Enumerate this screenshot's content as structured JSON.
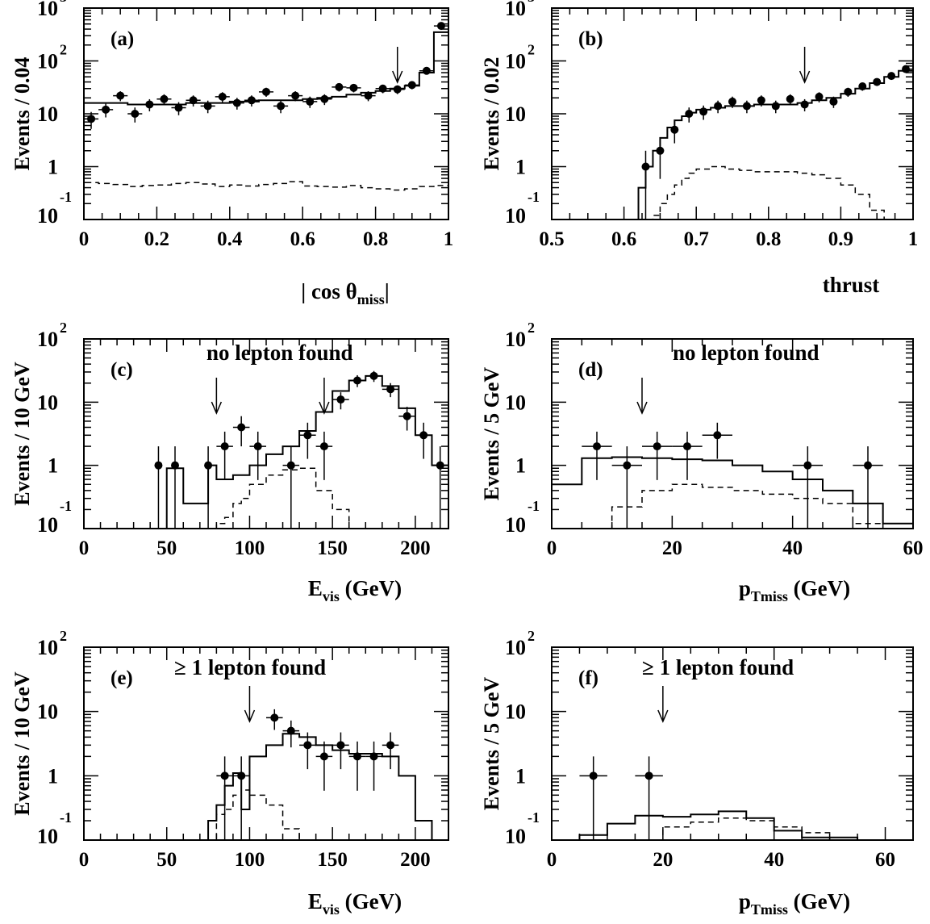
{
  "chart_data": [
    {
      "id": "a",
      "type": "histogram",
      "panel_label": "(a)",
      "annotation": "",
      "ylabel": "Events / 0.04",
      "xlabel": "| cos θ",
      "xlabel_sub": "miss",
      "xlabel_suffix": "|",
      "xlim": [
        0,
        1
      ],
      "ylim_log": [
        0.1,
        1000
      ],
      "xticks": [
        0,
        0.2,
        0.4,
        0.6,
        0.8,
        1
      ],
      "xtick_labels": [
        "0",
        "0.2",
        "0.4",
        "0.6",
        "0.8",
        "1"
      ],
      "minor_xticks": [
        0.05,
        0.1,
        0.15,
        0.25,
        0.3,
        0.35,
        0.45,
        0.5,
        0.55,
        0.65,
        0.7,
        0.75,
        0.85,
        0.9,
        0.95
      ],
      "ytick_labels": [
        {
          "value": 1000,
          "base": "10",
          "exp": "3"
        },
        {
          "value": 100,
          "base": "10",
          "exp": "2"
        },
        {
          "value": 10,
          "base": "10",
          "exp": ""
        },
        {
          "value": 1,
          "base": "1",
          "exp": ""
        },
        {
          "value": 0.1,
          "base": "10",
          "exp": "-1"
        }
      ],
      "cut_arrow": 0.86,
      "mc_bins": [
        0,
        0.04,
        0.08,
        0.12,
        0.16,
        0.2,
        0.24,
        0.28,
        0.32,
        0.36,
        0.4,
        0.44,
        0.48,
        0.52,
        0.56,
        0.6,
        0.64,
        0.68,
        0.72,
        0.76,
        0.8,
        0.84,
        0.88,
        0.92,
        0.96,
        1.0
      ],
      "mc_values": [
        16,
        16,
        16,
        15,
        15,
        15,
        15,
        16,
        16,
        16,
        17,
        17,
        18,
        18,
        18,
        19,
        20,
        21,
        23,
        25,
        27,
        30,
        34,
        60,
        350
      ],
      "bg_values": [
        0.5,
        0.48,
        0.46,
        0.42,
        0.44,
        0.45,
        0.48,
        0.5,
        0.47,
        0.42,
        0.45,
        0.43,
        0.46,
        0.48,
        0.52,
        0.43,
        0.42,
        0.41,
        0.44,
        0.4,
        0.38,
        0.36,
        0.38,
        0.42,
        0.44
      ],
      "data_points": [
        {
          "x": 0.02,
          "y": 8,
          "xerr": 0.02
        },
        {
          "x": 0.06,
          "y": 12,
          "xerr": 0.02
        },
        {
          "x": 0.1,
          "y": 22,
          "xerr": 0.02
        },
        {
          "x": 0.14,
          "y": 10,
          "xerr": 0.02
        },
        {
          "x": 0.18,
          "y": 15,
          "xerr": 0.02
        },
        {
          "x": 0.22,
          "y": 19,
          "xerr": 0.02
        },
        {
          "x": 0.26,
          "y": 13,
          "xerr": 0.02
        },
        {
          "x": 0.3,
          "y": 18,
          "xerr": 0.02
        },
        {
          "x": 0.34,
          "y": 14,
          "xerr": 0.02
        },
        {
          "x": 0.38,
          "y": 21,
          "xerr": 0.02
        },
        {
          "x": 0.42,
          "y": 16,
          "xerr": 0.02
        },
        {
          "x": 0.46,
          "y": 18,
          "xerr": 0.02
        },
        {
          "x": 0.5,
          "y": 26,
          "xerr": 0.02
        },
        {
          "x": 0.54,
          "y": 14,
          "xerr": 0.02
        },
        {
          "x": 0.58,
          "y": 22,
          "xerr": 0.02
        },
        {
          "x": 0.62,
          "y": 17,
          "xerr": 0.02
        },
        {
          "x": 0.66,
          "y": 19,
          "xerr": 0.02
        },
        {
          "x": 0.7,
          "y": 32,
          "xerr": 0.02
        },
        {
          "x": 0.74,
          "y": 31,
          "xerr": 0.02
        },
        {
          "x": 0.78,
          "y": 22,
          "xerr": 0.02
        },
        {
          "x": 0.82,
          "y": 30,
          "xerr": 0.02
        },
        {
          "x": 0.86,
          "y": 29,
          "xerr": 0.02
        },
        {
          "x": 0.9,
          "y": 35,
          "xerr": 0.02
        },
        {
          "x": 0.94,
          "y": 65,
          "xerr": 0.02
        },
        {
          "x": 0.98,
          "y": 460,
          "xerr": 0.02
        }
      ]
    },
    {
      "id": "b",
      "type": "histogram",
      "panel_label": "(b)",
      "annotation": "",
      "ylabel": "Events / 0.02",
      "xlabel": "thrust",
      "xlabel_sub": "",
      "xlabel_suffix": "",
      "xlim": [
        0.5,
        1
      ],
      "ylim_log": [
        0.1,
        1000
      ],
      "xticks": [
        0.5,
        0.6,
        0.7,
        0.8,
        0.9,
        1
      ],
      "xtick_labels": [
        "0.5",
        "0.6",
        "0.7",
        "0.8",
        "0.9",
        "1"
      ],
      "minor_xticks": [
        0.525,
        0.55,
        0.575,
        0.625,
        0.65,
        0.675,
        0.725,
        0.75,
        0.775,
        0.825,
        0.85,
        0.875,
        0.925,
        0.95,
        0.975
      ],
      "ytick_labels": [
        {
          "value": 1000,
          "base": "10",
          "exp": "3"
        },
        {
          "value": 100,
          "base": "10",
          "exp": "2"
        },
        {
          "value": 10,
          "base": "10",
          "exp": ""
        },
        {
          "value": 1,
          "base": "1",
          "exp": ""
        },
        {
          "value": 0.1,
          "base": "10",
          "exp": "-1"
        }
      ],
      "cut_arrow": 0.85,
      "mc_bins": [
        0.62,
        0.63,
        0.64,
        0.65,
        0.66,
        0.67,
        0.68,
        0.69,
        0.7,
        0.72,
        0.74,
        0.76,
        0.78,
        0.8,
        0.82,
        0.84,
        0.86,
        0.88,
        0.9,
        0.92,
        0.94,
        0.96,
        0.98,
        1.0
      ],
      "mc_values": [
        0.4,
        1.0,
        2.0,
        3.5,
        5.5,
        7.5,
        9.0,
        10.5,
        12,
        13,
        14,
        14,
        15,
        15,
        15,
        16,
        18,
        20,
        24,
        30,
        38,
        50,
        65
      ],
      "bg_values": [
        0.06,
        0.08,
        0.12,
        0.2,
        0.3,
        0.45,
        0.6,
        0.75,
        0.9,
        1.0,
        0.9,
        0.85,
        0.8,
        0.8,
        0.8,
        0.75,
        0.7,
        0.6,
        0.45,
        0.3,
        0.15,
        0.08,
        0.06
      ],
      "data_points": [
        {
          "x": 0.63,
          "y": 1,
          "xerr": 0.005
        },
        {
          "x": 0.65,
          "y": 2,
          "xerr": 0.005
        },
        {
          "x": 0.67,
          "y": 5,
          "xerr": 0.005
        },
        {
          "x": 0.69,
          "y": 10,
          "xerr": 0.005
        },
        {
          "x": 0.71,
          "y": 11,
          "xerr": 0.005
        },
        {
          "x": 0.73,
          "y": 14,
          "xerr": 0.005
        },
        {
          "x": 0.75,
          "y": 17,
          "xerr": 0.005
        },
        {
          "x": 0.77,
          "y": 14,
          "xerr": 0.005
        },
        {
          "x": 0.79,
          "y": 18,
          "xerr": 0.005
        },
        {
          "x": 0.81,
          "y": 14,
          "xerr": 0.005
        },
        {
          "x": 0.83,
          "y": 19,
          "xerr": 0.005
        },
        {
          "x": 0.85,
          "y": 15,
          "xerr": 0.005
        },
        {
          "x": 0.87,
          "y": 21,
          "xerr": 0.005
        },
        {
          "x": 0.89,
          "y": 17,
          "xerr": 0.005
        },
        {
          "x": 0.91,
          "y": 26,
          "xerr": 0.005
        },
        {
          "x": 0.93,
          "y": 33,
          "xerr": 0.005
        },
        {
          "x": 0.95,
          "y": 40,
          "xerr": 0.005
        },
        {
          "x": 0.97,
          "y": 52,
          "xerr": 0.005
        },
        {
          "x": 0.99,
          "y": 70,
          "xerr": 0.005
        }
      ]
    },
    {
      "id": "c",
      "type": "histogram",
      "panel_label": "(c)",
      "annotation": "no lepton found",
      "ylabel": "Events / 10 GeV",
      "xlabel": "E",
      "xlabel_sub": "vis",
      "xlabel_suffix": " (GeV)",
      "xlim": [
        0,
        220
      ],
      "ylim_log": [
        0.1,
        100
      ],
      "xticks": [
        0,
        50,
        100,
        150,
        200
      ],
      "xtick_labels": [
        "0",
        "50",
        "100",
        "150",
        "200"
      ],
      "minor_xticks": [
        10,
        20,
        30,
        40,
        60,
        70,
        80,
        90,
        110,
        120,
        130,
        140,
        160,
        170,
        180,
        190,
        210
      ],
      "ytick_labels": [
        {
          "value": 100,
          "base": "10",
          "exp": "2"
        },
        {
          "value": 10,
          "base": "10",
          "exp": ""
        },
        {
          "value": 1,
          "base": "1",
          "exp": ""
        },
        {
          "value": 0.1,
          "base": "10",
          "exp": "-1"
        }
      ],
      "cut_arrow": [
        80,
        145
      ],
      "mc_bins": [
        50,
        55,
        60,
        65,
        70,
        75,
        80,
        85,
        90,
        95,
        100,
        110,
        120,
        130,
        140,
        150,
        160,
        170,
        180,
        190,
        200,
        210,
        220
      ],
      "mc_values": [
        0.9,
        0.9,
        0.25,
        0.25,
        0.25,
        1.0,
        0.6,
        0.6,
        0.7,
        0.7,
        1.0,
        1.5,
        2.0,
        3.5,
        7.0,
        15,
        22,
        26,
        18,
        8,
        3,
        1
      ],
      "bg_values": [
        0.01,
        0.01,
        0.01,
        0.01,
        0.01,
        0.01,
        0.12,
        0.15,
        0.25,
        0.3,
        0.5,
        0.7,
        0.85,
        0.9,
        0.4,
        0.2,
        0.1,
        0.01,
        0.01,
        0.01,
        0.01,
        0.01
      ],
      "data_points": [
        {
          "x": 45,
          "y": 1,
          "xerr": 0
        },
        {
          "x": 55,
          "y": 1,
          "xerr": 0
        },
        {
          "x": 75,
          "y": 1,
          "xerr": 0
        },
        {
          "x": 85,
          "y": 2,
          "xerr": 5
        },
        {
          "x": 95,
          "y": 4,
          "xerr": 5
        },
        {
          "x": 105,
          "y": 2,
          "xerr": 5
        },
        {
          "x": 125,
          "y": 1,
          "xerr": 5
        },
        {
          "x": 135,
          "y": 3,
          "xerr": 5
        },
        {
          "x": 145,
          "y": 2,
          "xerr": 5
        },
        {
          "x": 155,
          "y": 11,
          "xerr": 5
        },
        {
          "x": 165,
          "y": 22,
          "xerr": 5
        },
        {
          "x": 175,
          "y": 26,
          "xerr": 5
        },
        {
          "x": 185,
          "y": 16,
          "xerr": 5
        },
        {
          "x": 195,
          "y": 6,
          "xerr": 5
        },
        {
          "x": 205,
          "y": 3,
          "xerr": 5
        },
        {
          "x": 215,
          "y": 1,
          "xerr": 5
        }
      ]
    },
    {
      "id": "d",
      "type": "histogram",
      "panel_label": "(d)",
      "annotation": "no lepton found",
      "ylabel": "Events / 5 GeV",
      "xlabel": "p",
      "xlabel_sub": "Tmiss",
      "xlabel_suffix": " (GeV)",
      "xlim": [
        0,
        60
      ],
      "ylim_log": [
        0.1,
        100
      ],
      "xticks": [
        0,
        20,
        40,
        60
      ],
      "xtick_labels": [
        "0",
        "20",
        "40",
        "60"
      ],
      "minor_xticks": [
        5,
        10,
        15,
        25,
        30,
        35,
        45,
        50,
        55
      ],
      "ytick_labels": [
        {
          "value": 100,
          "base": "10",
          "exp": "2"
        },
        {
          "value": 10,
          "base": "10",
          "exp": ""
        },
        {
          "value": 1,
          "base": "1",
          "exp": ""
        },
        {
          "value": 0.1,
          "base": "10",
          "exp": "-1"
        }
      ],
      "cut_arrow": 15,
      "mc_bins": [
        0,
        5,
        10,
        15,
        20,
        25,
        30,
        35,
        40,
        45,
        50,
        55,
        60
      ],
      "mc_values": [
        0.5,
        1.3,
        1.35,
        1.3,
        1.25,
        1.2,
        1.0,
        0.8,
        0.6,
        0.4,
        0.25,
        0.12
      ],
      "bg_values": [
        0.1,
        0.1,
        0.22,
        0.4,
        0.5,
        0.45,
        0.4,
        0.35,
        0.3,
        0.25,
        0.12,
        0.12
      ],
      "data_points": [
        {
          "x": 7.5,
          "y": 2,
          "xerr": 2.5
        },
        {
          "x": 12.5,
          "y": 1,
          "xerr": 2.5
        },
        {
          "x": 17.5,
          "y": 2,
          "xerr": 2.5
        },
        {
          "x": 22.5,
          "y": 2,
          "xerr": 2.5
        },
        {
          "x": 27.5,
          "y": 3,
          "xerr": 2.5
        },
        {
          "x": 42.5,
          "y": 1,
          "xerr": 2.5
        },
        {
          "x": 52.5,
          "y": 1,
          "xerr": 2.5
        }
      ]
    },
    {
      "id": "e",
      "type": "histogram",
      "panel_label": "(e)",
      "annotation": "≥ 1 lepton found",
      "ylabel": "Events / 10 GeV",
      "xlabel": "E",
      "xlabel_sub": "vis",
      "xlabel_suffix": " (GeV)",
      "xlim": [
        0,
        220
      ],
      "ylim_log": [
        0.1,
        100
      ],
      "xticks": [
        0,
        50,
        100,
        150,
        200
      ],
      "xtick_labels": [
        "0",
        "50",
        "100",
        "150",
        "200"
      ],
      "minor_xticks": [
        10,
        20,
        30,
        40,
        60,
        70,
        80,
        90,
        110,
        120,
        130,
        140,
        160,
        170,
        180,
        190,
        210
      ],
      "ytick_labels": [
        {
          "value": 100,
          "base": "10",
          "exp": "2"
        },
        {
          "value": 10,
          "base": "10",
          "exp": ""
        },
        {
          "value": 1,
          "base": "1",
          "exp": ""
        },
        {
          "value": 0.1,
          "base": "10",
          "exp": "-1"
        }
      ],
      "cut_arrow": 100,
      "mc_bins": [
        75,
        80,
        85,
        90,
        95,
        100,
        110,
        120,
        130,
        140,
        150,
        160,
        170,
        180,
        190,
        200,
        210
      ],
      "mc_values": [
        0.2,
        0.35,
        0.7,
        1.1,
        0.3,
        2,
        3,
        4.5,
        4,
        3,
        2.5,
        2.2,
        2.2,
        2,
        1,
        0.2
      ],
      "bg_values": [
        0.1,
        0.25,
        0.3,
        0.5,
        0.6,
        0.5,
        0.35,
        0.15,
        0.1,
        0.01,
        0.01,
        0.01,
        0.01,
        0.01,
        0.01,
        0.01
      ],
      "data_points": [
        {
          "x": 85,
          "y": 1,
          "xerr": 5
        },
        {
          "x": 95,
          "y": 1,
          "xerr": 5
        },
        {
          "x": 115,
          "y": 8,
          "xerr": 5
        },
        {
          "x": 125,
          "y": 5,
          "xerr": 5
        },
        {
          "x": 135,
          "y": 3,
          "xerr": 5
        },
        {
          "x": 145,
          "y": 2,
          "xerr": 5
        },
        {
          "x": 155,
          "y": 3,
          "xerr": 5
        },
        {
          "x": 165,
          "y": 2,
          "xerr": 5
        },
        {
          "x": 175,
          "y": 2,
          "xerr": 5
        },
        {
          "x": 185,
          "y": 3,
          "xerr": 5
        }
      ]
    },
    {
      "id": "f",
      "type": "histogram",
      "panel_label": "(f)",
      "annotation": "≥ 1 lepton found",
      "ylabel": "Events / 5 GeV",
      "xlabel": "p",
      "xlabel_sub": "Tmiss",
      "xlabel_suffix": " (GeV)",
      "xlim": [
        0,
        65
      ],
      "ylim_log": [
        0.1,
        100
      ],
      "xticks": [
        0,
        20,
        40,
        60
      ],
      "xtick_labels": [
        "0",
        "20",
        "40",
        "60"
      ],
      "minor_xticks": [
        5,
        10,
        15,
        25,
        30,
        35,
        45,
        50,
        55
      ],
      "ytick_labels": [
        {
          "value": 100,
          "base": "10",
          "exp": "2"
        },
        {
          "value": 10,
          "base": "10",
          "exp": ""
        },
        {
          "value": 1,
          "base": "1",
          "exp": ""
        },
        {
          "value": 0.1,
          "base": "10",
          "exp": "-1"
        }
      ],
      "cut_arrow": 20,
      "mc_bins": [
        0,
        5,
        10,
        15,
        20,
        25,
        30,
        35,
        40,
        45,
        50,
        55,
        60,
        65
      ],
      "mc_values": [
        0.1,
        0.12,
        0.18,
        0.24,
        0.23,
        0.25,
        0.28,
        0.22,
        0.14,
        0.11,
        0.11,
        0.1,
        0.1
      ],
      "bg_values": [
        0.1,
        0.1,
        0.1,
        0.1,
        0.16,
        0.19,
        0.22,
        0.2,
        0.16,
        0.13,
        0.1,
        0.1,
        0.1
      ],
      "data_points": [
        {
          "x": 7.5,
          "y": 1,
          "xerr": 2.5
        },
        {
          "x": 17.5,
          "y": 1,
          "xerr": 2.5
        }
      ]
    }
  ]
}
